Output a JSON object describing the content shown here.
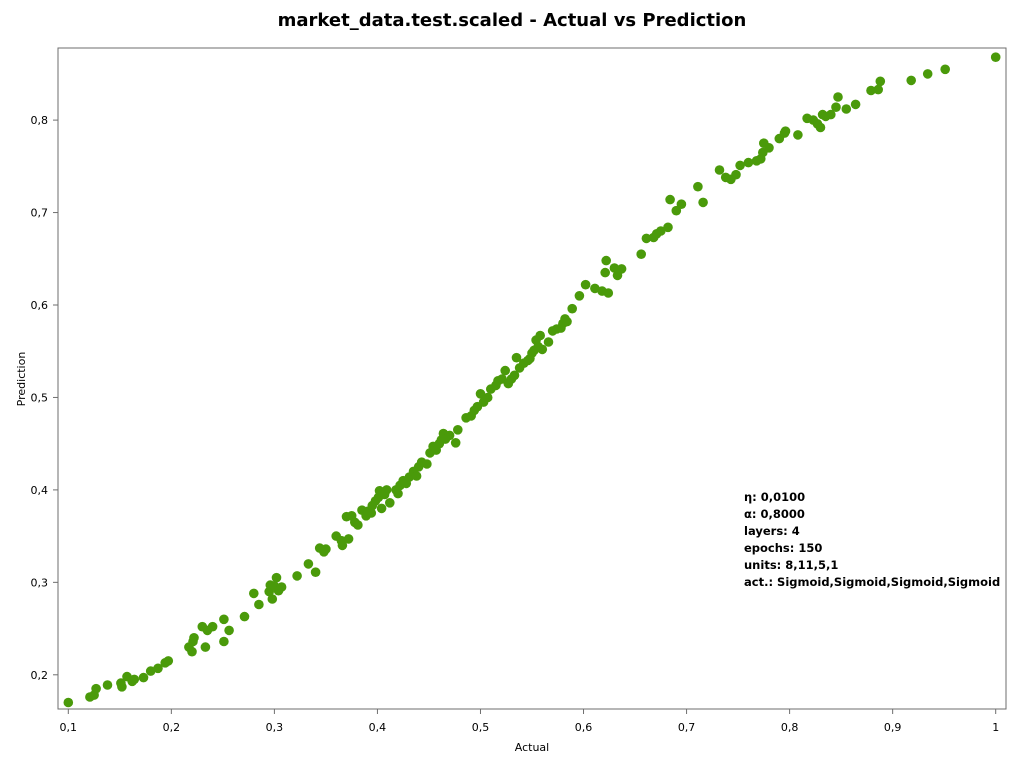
{
  "chart_data": {
    "type": "scatter",
    "title": "market_data.test.scaled - Actual vs Prediction",
    "xlabel": "Actual",
    "ylabel": "Prediction",
    "xlim": [
      0.09,
      1.01
    ],
    "ylim": [
      0.163,
      0.878
    ],
    "x_ticks": [
      "0,1",
      "0,2",
      "0,3",
      "0,4",
      "0,5",
      "0,6",
      "0,7",
      "0,8",
      "0,9",
      "1"
    ],
    "y_ticks": [
      "0,2",
      "0,3",
      "0,4",
      "0,5",
      "0,6",
      "0,7",
      "0,8"
    ],
    "grid": false,
    "marker_color": "#4a9a0a",
    "annotation": [
      "η: 0,0100",
      "α: 0,8000",
      "layers: 4",
      "epochs: 150",
      "units: 8,11,5,1",
      "act.: Sigmoid,Sigmoid,Sigmoid,Sigmoid"
    ],
    "points": [
      [
        0.1,
        0.17
      ],
      [
        0.121,
        0.176
      ],
      [
        0.125,
        0.178
      ],
      [
        0.127,
        0.185
      ],
      [
        0.138,
        0.189
      ],
      [
        0.151,
        0.191
      ],
      [
        0.152,
        0.187
      ],
      [
        0.157,
        0.198
      ],
      [
        0.162,
        0.193
      ],
      [
        0.164,
        0.195
      ],
      [
        0.173,
        0.197
      ],
      [
        0.18,
        0.204
      ],
      [
        0.187,
        0.207
      ],
      [
        0.194,
        0.213
      ],
      [
        0.197,
        0.215
      ],
      [
        0.217,
        0.23
      ],
      [
        0.22,
        0.225
      ],
      [
        0.221,
        0.236
      ],
      [
        0.222,
        0.24
      ],
      [
        0.23,
        0.252
      ],
      [
        0.233,
        0.23
      ],
      [
        0.235,
        0.248
      ],
      [
        0.24,
        0.252
      ],
      [
        0.251,
        0.26
      ],
      [
        0.251,
        0.236
      ],
      [
        0.256,
        0.248
      ],
      [
        0.271,
        0.263
      ],
      [
        0.28,
        0.288
      ],
      [
        0.285,
        0.276
      ],
      [
        0.295,
        0.29
      ],
      [
        0.296,
        0.297
      ],
      [
        0.298,
        0.282
      ],
      [
        0.3,
        0.296
      ],
      [
        0.302,
        0.305
      ],
      [
        0.304,
        0.291
      ],
      [
        0.307,
        0.295
      ],
      [
        0.322,
        0.307
      ],
      [
        0.333,
        0.32
      ],
      [
        0.34,
        0.311
      ],
      [
        0.344,
        0.337
      ],
      [
        0.348,
        0.333
      ],
      [
        0.35,
        0.336
      ],
      [
        0.36,
        0.35
      ],
      [
        0.365,
        0.345
      ],
      [
        0.366,
        0.34
      ],
      [
        0.37,
        0.371
      ],
      [
        0.372,
        0.347
      ],
      [
        0.375,
        0.372
      ],
      [
        0.378,
        0.365
      ],
      [
        0.381,
        0.362
      ],
      [
        0.385,
        0.378
      ],
      [
        0.389,
        0.372
      ],
      [
        0.391,
        0.377
      ],
      [
        0.394,
        0.375
      ],
      [
        0.395,
        0.383
      ],
      [
        0.398,
        0.388
      ],
      [
        0.401,
        0.392
      ],
      [
        0.402,
        0.399
      ],
      [
        0.404,
        0.38
      ],
      [
        0.407,
        0.395
      ],
      [
        0.409,
        0.4
      ],
      [
        0.412,
        0.386
      ],
      [
        0.418,
        0.4
      ],
      [
        0.42,
        0.396
      ],
      [
        0.422,
        0.405
      ],
      [
        0.425,
        0.41
      ],
      [
        0.428,
        0.407
      ],
      [
        0.431,
        0.414
      ],
      [
        0.435,
        0.42
      ],
      [
        0.438,
        0.415
      ],
      [
        0.44,
        0.425
      ],
      [
        0.443,
        0.43
      ],
      [
        0.448,
        0.428
      ],
      [
        0.451,
        0.44
      ],
      [
        0.454,
        0.447
      ],
      [
        0.457,
        0.443
      ],
      [
        0.46,
        0.45
      ],
      [
        0.462,
        0.454
      ],
      [
        0.464,
        0.461
      ],
      [
        0.466,
        0.455
      ],
      [
        0.47,
        0.459
      ],
      [
        0.476,
        0.451
      ],
      [
        0.478,
        0.465
      ],
      [
        0.486,
        0.478
      ],
      [
        0.491,
        0.48
      ],
      [
        0.494,
        0.486
      ],
      [
        0.497,
        0.49
      ],
      [
        0.5,
        0.504
      ],
      [
        0.503,
        0.495
      ],
      [
        0.507,
        0.5
      ],
      [
        0.51,
        0.509
      ],
      [
        0.515,
        0.513
      ],
      [
        0.517,
        0.518
      ],
      [
        0.521,
        0.52
      ],
      [
        0.524,
        0.529
      ],
      [
        0.527,
        0.515
      ],
      [
        0.53,
        0.52
      ],
      [
        0.533,
        0.524
      ],
      [
        0.535,
        0.543
      ],
      [
        0.538,
        0.532
      ],
      [
        0.542,
        0.537
      ],
      [
        0.546,
        0.54
      ],
      [
        0.548,
        0.542
      ],
      [
        0.55,
        0.548
      ],
      [
        0.552,
        0.551
      ],
      [
        0.554,
        0.562
      ],
      [
        0.556,
        0.555
      ],
      [
        0.558,
        0.567
      ],
      [
        0.56,
        0.552
      ],
      [
        0.566,
        0.56
      ],
      [
        0.57,
        0.572
      ],
      [
        0.574,
        0.574
      ],
      [
        0.578,
        0.575
      ],
      [
        0.58,
        0.58
      ],
      [
        0.582,
        0.585
      ],
      [
        0.584,
        0.582
      ],
      [
        0.589,
        0.596
      ],
      [
        0.596,
        0.61
      ],
      [
        0.602,
        0.622
      ],
      [
        0.611,
        0.618
      ],
      [
        0.618,
        0.615
      ],
      [
        0.621,
        0.635
      ],
      [
        0.622,
        0.648
      ],
      [
        0.624,
        0.613
      ],
      [
        0.63,
        0.64
      ],
      [
        0.633,
        0.632
      ],
      [
        0.637,
        0.639
      ],
      [
        0.656,
        0.655
      ],
      [
        0.661,
        0.672
      ],
      [
        0.668,
        0.673
      ],
      [
        0.671,
        0.677
      ],
      [
        0.675,
        0.68
      ],
      [
        0.682,
        0.684
      ],
      [
        0.684,
        0.714
      ],
      [
        0.69,
        0.702
      ],
      [
        0.695,
        0.709
      ],
      [
        0.711,
        0.728
      ],
      [
        0.716,
        0.711
      ],
      [
        0.732,
        0.746
      ],
      [
        0.738,
        0.738
      ],
      [
        0.743,
        0.736
      ],
      [
        0.748,
        0.741
      ],
      [
        0.752,
        0.751
      ],
      [
        0.76,
        0.754
      ],
      [
        0.768,
        0.756
      ],
      [
        0.772,
        0.758
      ],
      [
        0.774,
        0.765
      ],
      [
        0.775,
        0.775
      ],
      [
        0.78,
        0.77
      ],
      [
        0.79,
        0.78
      ],
      [
        0.795,
        0.786
      ],
      [
        0.796,
        0.788
      ],
      [
        0.808,
        0.784
      ],
      [
        0.817,
        0.802
      ],
      [
        0.823,
        0.8
      ],
      [
        0.827,
        0.796
      ],
      [
        0.83,
        0.792
      ],
      [
        0.832,
        0.806
      ],
      [
        0.835,
        0.804
      ],
      [
        0.84,
        0.806
      ],
      [
        0.845,
        0.814
      ],
      [
        0.847,
        0.825
      ],
      [
        0.855,
        0.812
      ],
      [
        0.864,
        0.817
      ],
      [
        0.879,
        0.832
      ],
      [
        0.886,
        0.833
      ],
      [
        0.888,
        0.842
      ],
      [
        0.918,
        0.843
      ],
      [
        0.934,
        0.85
      ],
      [
        0.951,
        0.855
      ],
      [
        1.0,
        0.868
      ]
    ]
  }
}
